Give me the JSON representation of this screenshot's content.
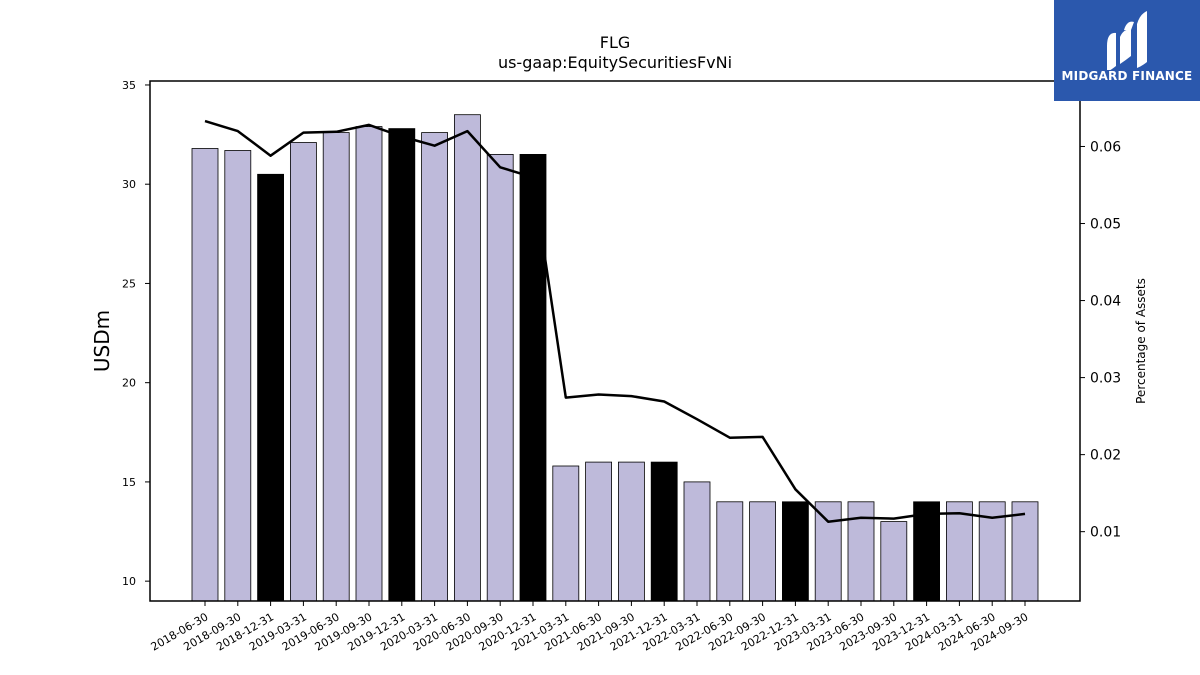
{
  "brand": {
    "name": "MIDGARD FINANCE",
    "bg_color": "#2b58ad"
  },
  "chart_data": {
    "type": "bar",
    "title": "FLG",
    "subtitle": "us-gaap:EquitySecuritiesFvNi",
    "ylabel": "USDm",
    "y2label": "Percentage of Assets",
    "ylim": [
      9,
      35.2
    ],
    "yticks": [
      10,
      15,
      20,
      25,
      30,
      35
    ],
    "y2lim": [
      0.001,
      0.0685
    ],
    "y2ticks": [
      0.01,
      0.02,
      0.03,
      0.04,
      0.05,
      0.06
    ],
    "y2tick_labels": [
      "0.01",
      "0.02",
      "0.03",
      "0.04",
      "0.05",
      "0.06"
    ],
    "bar_color": "#bebada",
    "highlight_color": "#000000",
    "line_color": "#000000",
    "categories": [
      "2018-06-30",
      "2018-09-30",
      "2018-12-31",
      "2019-03-31",
      "2019-06-30",
      "2019-09-30",
      "2019-12-31",
      "2020-03-31",
      "2020-06-30",
      "2020-09-30",
      "2020-12-31",
      "2021-03-31",
      "2021-06-30",
      "2021-09-30",
      "2021-12-31",
      "2022-03-31",
      "2022-06-30",
      "2022-09-30",
      "2022-12-31",
      "2023-03-31",
      "2023-06-30",
      "2023-09-30",
      "2023-12-31",
      "2024-03-31",
      "2024-06-30",
      "2024-09-30"
    ],
    "series": [
      {
        "type": "bar",
        "values": [
          31.8,
          31.7,
          30.5,
          32.1,
          32.6,
          32.9,
          32.8,
          32.6,
          33.5,
          31.5,
          31.5,
          15.8,
          16.0,
          16.0,
          16.0,
          15.0,
          14.0,
          14.0,
          14.0,
          14.0,
          14.0,
          13.0,
          14.0,
          14.0,
          14.0,
          14.0
        ],
        "highlight": [
          false,
          false,
          true,
          false,
          false,
          false,
          true,
          false,
          false,
          false,
          true,
          false,
          false,
          false,
          true,
          false,
          false,
          false,
          true,
          false,
          false,
          false,
          true,
          false,
          false,
          false
        ]
      },
      {
        "type": "line",
        "axis": "right",
        "values": [
          0.0633,
          0.062,
          0.0588,
          0.0618,
          0.0619,
          0.0628,
          0.0613,
          0.0601,
          0.062,
          0.0573,
          0.056,
          0.0274,
          0.0278,
          0.0276,
          0.0269,
          0.0246,
          0.0222,
          0.0223,
          0.0155,
          0.0113,
          0.0118,
          0.0117,
          0.0123,
          0.0124,
          0.0118,
          0.0123
        ]
      }
    ]
  }
}
